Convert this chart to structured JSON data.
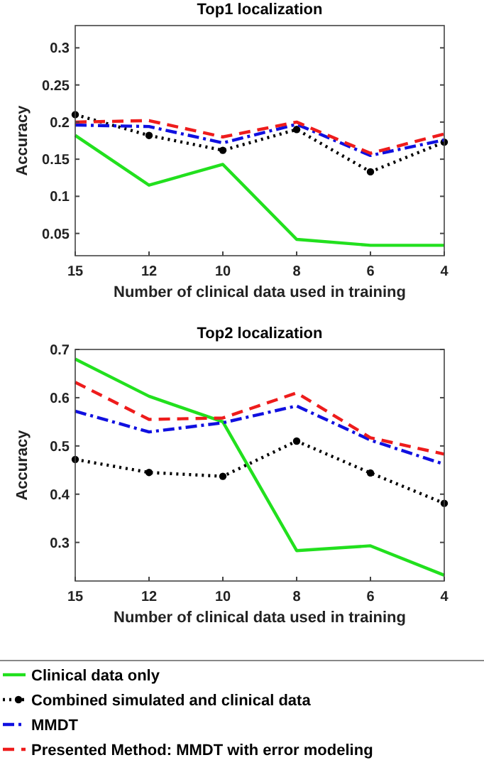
{
  "chart_data": [
    {
      "type": "line",
      "title": "Top1 localization",
      "xlabel": "Number of clinical data used in training",
      "ylabel": "Accuracy",
      "categories": [
        "15",
        "12",
        "10",
        "8",
        "6",
        "4"
      ],
      "ylim": [
        0.02,
        0.33
      ],
      "yticks": [
        0.05,
        0.1,
        0.15,
        0.2,
        0.25,
        0.3
      ],
      "grid": false,
      "legend": false,
      "series": [
        {
          "color": "#22e01e",
          "line_style": "solid",
          "marker": "none",
          "values": [
            0.182,
            0.115,
            0.143,
            0.042,
            0.034,
            0.034
          ]
        },
        {
          "color": "#000000",
          "line_style": "dotted",
          "marker": "circle",
          "values": [
            0.21,
            0.182,
            0.162,
            0.19,
            0.133,
            0.173
          ]
        },
        {
          "color": "#1010e0",
          "line_style": "dashdot",
          "marker": "none",
          "values": [
            0.196,
            0.194,
            0.172,
            0.197,
            0.155,
            0.176
          ]
        },
        {
          "color": "#ee1c1c",
          "line_style": "dashed",
          "marker": "none",
          "values": [
            0.2,
            0.202,
            0.18,
            0.2,
            0.158,
            0.184
          ]
        }
      ]
    },
    {
      "type": "line",
      "title": "Top2 localization",
      "xlabel": "Number of clinical data used in training",
      "ylabel": "Accuracy",
      "categories": [
        "15",
        "12",
        "10",
        "8",
        "6",
        "4"
      ],
      "ylim": [
        0.22,
        0.7
      ],
      "yticks": [
        0.3,
        0.4,
        0.5,
        0.6,
        0.7
      ],
      "grid": false,
      "legend": "bottom",
      "series": [
        {
          "name": "Clinical data only",
          "color": "#22e01e",
          "line_style": "solid",
          "marker": "none",
          "values": [
            0.68,
            0.603,
            0.55,
            0.283,
            0.293,
            0.232
          ]
        },
        {
          "name": "Combined simulated and clinical data",
          "color": "#000000",
          "line_style": "dotted",
          "marker": "circle",
          "values": [
            0.472,
            0.445,
            0.437,
            0.51,
            0.444,
            0.381
          ]
        },
        {
          "name": "MMDT",
          "color": "#1010e0",
          "line_style": "dashdot",
          "marker": "none",
          "values": [
            0.572,
            0.529,
            0.548,
            0.583,
            0.512,
            0.462
          ]
        },
        {
          "name": "Presented Method: MMDT with error modeling",
          "color": "#ee1c1c",
          "line_style": "dashed",
          "marker": "none",
          "values": [
            0.632,
            0.555,
            0.558,
            0.61,
            0.517,
            0.483
          ]
        }
      ]
    }
  ]
}
